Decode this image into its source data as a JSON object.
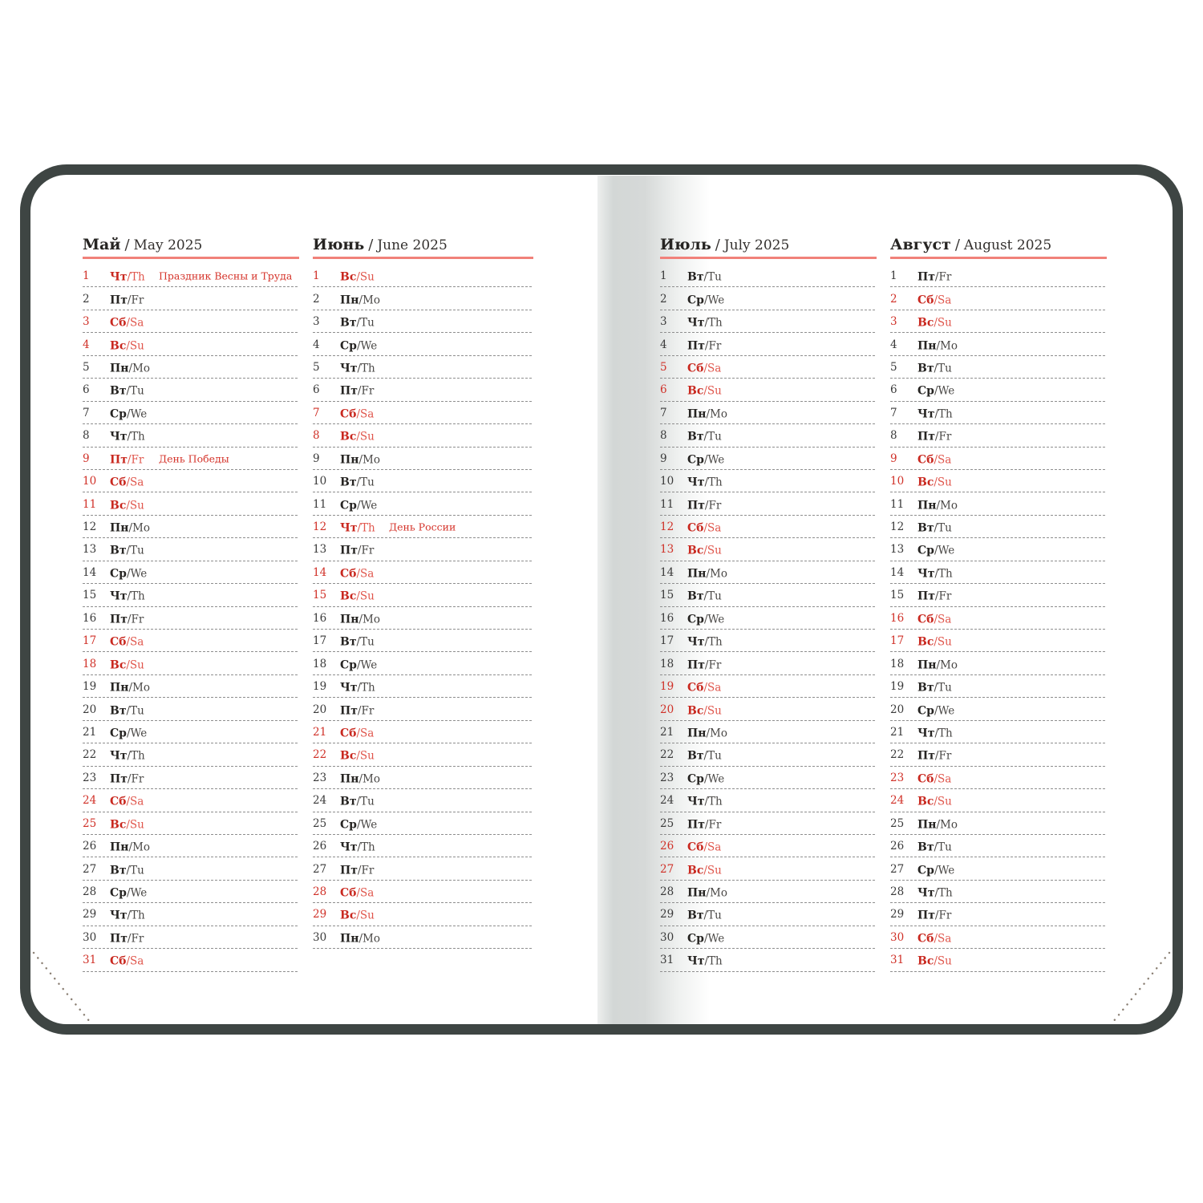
{
  "strings": {
    "header_divider": "/",
    "day_divider": "/"
  },
  "colors": {
    "cover": "#3e4543",
    "accent_red": "#d03128",
    "header_underline": "#f1817a",
    "text": "#262422",
    "dash_line": "#8e8e8e",
    "gutter_shadow": "#d3d7d6"
  },
  "months": [
    {
      "name_ru": "Май",
      "name_en": "May 2025",
      "days": [
        [
          1,
          "Чт",
          "Th",
          1,
          "Праздник Весны и Труда"
        ],
        [
          2,
          "Пт",
          "Fr",
          0,
          ""
        ],
        [
          3,
          "Сб",
          "Sa",
          1,
          ""
        ],
        [
          4,
          "Вс",
          "Su",
          1,
          ""
        ],
        [
          5,
          "Пн",
          "Mo",
          0,
          ""
        ],
        [
          6,
          "Вт",
          "Tu",
          0,
          ""
        ],
        [
          7,
          "Ср",
          "We",
          0,
          ""
        ],
        [
          8,
          "Чт",
          "Th",
          0,
          ""
        ],
        [
          9,
          "Пт",
          "Fr",
          1,
          "День Победы"
        ],
        [
          10,
          "Сб",
          "Sa",
          1,
          ""
        ],
        [
          11,
          "Вс",
          "Su",
          1,
          ""
        ],
        [
          12,
          "Пн",
          "Mo",
          0,
          ""
        ],
        [
          13,
          "Вт",
          "Tu",
          0,
          ""
        ],
        [
          14,
          "Ср",
          "We",
          0,
          ""
        ],
        [
          15,
          "Чт",
          "Th",
          0,
          ""
        ],
        [
          16,
          "Пт",
          "Fr",
          0,
          ""
        ],
        [
          17,
          "Сб",
          "Sa",
          1,
          ""
        ],
        [
          18,
          "Вс",
          "Su",
          1,
          ""
        ],
        [
          19,
          "Пн",
          "Mo",
          0,
          ""
        ],
        [
          20,
          "Вт",
          "Tu",
          0,
          ""
        ],
        [
          21,
          "Ср",
          "We",
          0,
          ""
        ],
        [
          22,
          "Чт",
          "Th",
          0,
          ""
        ],
        [
          23,
          "Пт",
          "Fr",
          0,
          ""
        ],
        [
          24,
          "Сб",
          "Sa",
          1,
          ""
        ],
        [
          25,
          "Вс",
          "Su",
          1,
          ""
        ],
        [
          26,
          "Пн",
          "Mo",
          0,
          ""
        ],
        [
          27,
          "Вт",
          "Tu",
          0,
          ""
        ],
        [
          28,
          "Ср",
          "We",
          0,
          ""
        ],
        [
          29,
          "Чт",
          "Th",
          0,
          ""
        ],
        [
          30,
          "Пт",
          "Fr",
          0,
          ""
        ],
        [
          31,
          "Сб",
          "Sa",
          1,
          ""
        ]
      ]
    },
    {
      "name_ru": "Июнь",
      "name_en": "June 2025",
      "days": [
        [
          1,
          "Вс",
          "Su",
          1,
          ""
        ],
        [
          2,
          "Пн",
          "Mo",
          0,
          ""
        ],
        [
          3,
          "Вт",
          "Tu",
          0,
          ""
        ],
        [
          4,
          "Ср",
          "We",
          0,
          ""
        ],
        [
          5,
          "Чт",
          "Th",
          0,
          ""
        ],
        [
          6,
          "Пт",
          "Fr",
          0,
          ""
        ],
        [
          7,
          "Сб",
          "Sa",
          1,
          ""
        ],
        [
          8,
          "Вс",
          "Su",
          1,
          ""
        ],
        [
          9,
          "Пн",
          "Mo",
          0,
          ""
        ],
        [
          10,
          "Вт",
          "Tu",
          0,
          ""
        ],
        [
          11,
          "Ср",
          "We",
          0,
          ""
        ],
        [
          12,
          "Чт",
          "Th",
          1,
          "День России"
        ],
        [
          13,
          "Пт",
          "Fr",
          0,
          ""
        ],
        [
          14,
          "Сб",
          "Sa",
          1,
          ""
        ],
        [
          15,
          "Вс",
          "Su",
          1,
          ""
        ],
        [
          16,
          "Пн",
          "Mo",
          0,
          ""
        ],
        [
          17,
          "Вт",
          "Tu",
          0,
          ""
        ],
        [
          18,
          "Ср",
          "We",
          0,
          ""
        ],
        [
          19,
          "Чт",
          "Th",
          0,
          ""
        ],
        [
          20,
          "Пт",
          "Fr",
          0,
          ""
        ],
        [
          21,
          "Сб",
          "Sa",
          1,
          ""
        ],
        [
          22,
          "Вс",
          "Su",
          1,
          ""
        ],
        [
          23,
          "Пн",
          "Mo",
          0,
          ""
        ],
        [
          24,
          "Вт",
          "Tu",
          0,
          ""
        ],
        [
          25,
          "Ср",
          "We",
          0,
          ""
        ],
        [
          26,
          "Чт",
          "Th",
          0,
          ""
        ],
        [
          27,
          "Пт",
          "Fr",
          0,
          ""
        ],
        [
          28,
          "Сб",
          "Sa",
          1,
          ""
        ],
        [
          29,
          "Вс",
          "Su",
          1,
          ""
        ],
        [
          30,
          "Пн",
          "Mo",
          0,
          ""
        ]
      ]
    },
    {
      "name_ru": "Июль",
      "name_en": "July 2025",
      "days": [
        [
          1,
          "Вт",
          "Tu",
          0,
          ""
        ],
        [
          2,
          "Ср",
          "We",
          0,
          ""
        ],
        [
          3,
          "Чт",
          "Th",
          0,
          ""
        ],
        [
          4,
          "Пт",
          "Fr",
          0,
          ""
        ],
        [
          5,
          "Сб",
          "Sa",
          1,
          ""
        ],
        [
          6,
          "Вс",
          "Su",
          1,
          ""
        ],
        [
          7,
          "Пн",
          "Mo",
          0,
          ""
        ],
        [
          8,
          "Вт",
          "Tu",
          0,
          ""
        ],
        [
          9,
          "Ср",
          "We",
          0,
          ""
        ],
        [
          10,
          "Чт",
          "Th",
          0,
          ""
        ],
        [
          11,
          "Пт",
          "Fr",
          0,
          ""
        ],
        [
          12,
          "Сб",
          "Sa",
          1,
          ""
        ],
        [
          13,
          "Вс",
          "Su",
          1,
          ""
        ],
        [
          14,
          "Пн",
          "Mo",
          0,
          ""
        ],
        [
          15,
          "Вт",
          "Tu",
          0,
          ""
        ],
        [
          16,
          "Ср",
          "We",
          0,
          ""
        ],
        [
          17,
          "Чт",
          "Th",
          0,
          ""
        ],
        [
          18,
          "Пт",
          "Fr",
          0,
          ""
        ],
        [
          19,
          "Сб",
          "Sa",
          1,
          ""
        ],
        [
          20,
          "Вс",
          "Su",
          1,
          ""
        ],
        [
          21,
          "Пн",
          "Mo",
          0,
          ""
        ],
        [
          22,
          "Вт",
          "Tu",
          0,
          ""
        ],
        [
          23,
          "Ср",
          "We",
          0,
          ""
        ],
        [
          24,
          "Чт",
          "Th",
          0,
          ""
        ],
        [
          25,
          "Пт",
          "Fr",
          0,
          ""
        ],
        [
          26,
          "Сб",
          "Sa",
          1,
          ""
        ],
        [
          27,
          "Вс",
          "Su",
          1,
          ""
        ],
        [
          28,
          "Пн",
          "Mo",
          0,
          ""
        ],
        [
          29,
          "Вт",
          "Tu",
          0,
          ""
        ],
        [
          30,
          "Ср",
          "We",
          0,
          ""
        ],
        [
          31,
          "Чт",
          "Th",
          0,
          ""
        ]
      ]
    },
    {
      "name_ru": "Август",
      "name_en": "August 2025",
      "days": [
        [
          1,
          "Пт",
          "Fr",
          0,
          ""
        ],
        [
          2,
          "Сб",
          "Sa",
          1,
          ""
        ],
        [
          3,
          "Вс",
          "Su",
          1,
          ""
        ],
        [
          4,
          "Пн",
          "Mo",
          0,
          ""
        ],
        [
          5,
          "Вт",
          "Tu",
          0,
          ""
        ],
        [
          6,
          "Ср",
          "We",
          0,
          ""
        ],
        [
          7,
          "Чт",
          "Th",
          0,
          ""
        ],
        [
          8,
          "Пт",
          "Fr",
          0,
          ""
        ],
        [
          9,
          "Сб",
          "Sa",
          1,
          ""
        ],
        [
          10,
          "Вс",
          "Su",
          1,
          ""
        ],
        [
          11,
          "Пн",
          "Mo",
          0,
          ""
        ],
        [
          12,
          "Вт",
          "Tu",
          0,
          ""
        ],
        [
          13,
          "Ср",
          "We",
          0,
          ""
        ],
        [
          14,
          "Чт",
          "Th",
          0,
          ""
        ],
        [
          15,
          "Пт",
          "Fr",
          0,
          ""
        ],
        [
          16,
          "Сб",
          "Sa",
          1,
          ""
        ],
        [
          17,
          "Вс",
          "Su",
          1,
          ""
        ],
        [
          18,
          "Пн",
          "Mo",
          0,
          ""
        ],
        [
          19,
          "Вт",
          "Tu",
          0,
          ""
        ],
        [
          20,
          "Ср",
          "We",
          0,
          ""
        ],
        [
          21,
          "Чт",
          "Th",
          0,
          ""
        ],
        [
          22,
          "Пт",
          "Fr",
          0,
          ""
        ],
        [
          23,
          "Сб",
          "Sa",
          1,
          ""
        ],
        [
          24,
          "Вс",
          "Su",
          1,
          ""
        ],
        [
          25,
          "Пн",
          "Mo",
          0,
          ""
        ],
        [
          26,
          "Вт",
          "Tu",
          0,
          ""
        ],
        [
          27,
          "Ср",
          "We",
          0,
          ""
        ],
        [
          28,
          "Чт",
          "Th",
          0,
          ""
        ],
        [
          29,
          "Пт",
          "Fr",
          0,
          ""
        ],
        [
          30,
          "Сб",
          "Sa",
          1,
          ""
        ],
        [
          31,
          "Вс",
          "Su",
          1,
          ""
        ]
      ]
    }
  ]
}
